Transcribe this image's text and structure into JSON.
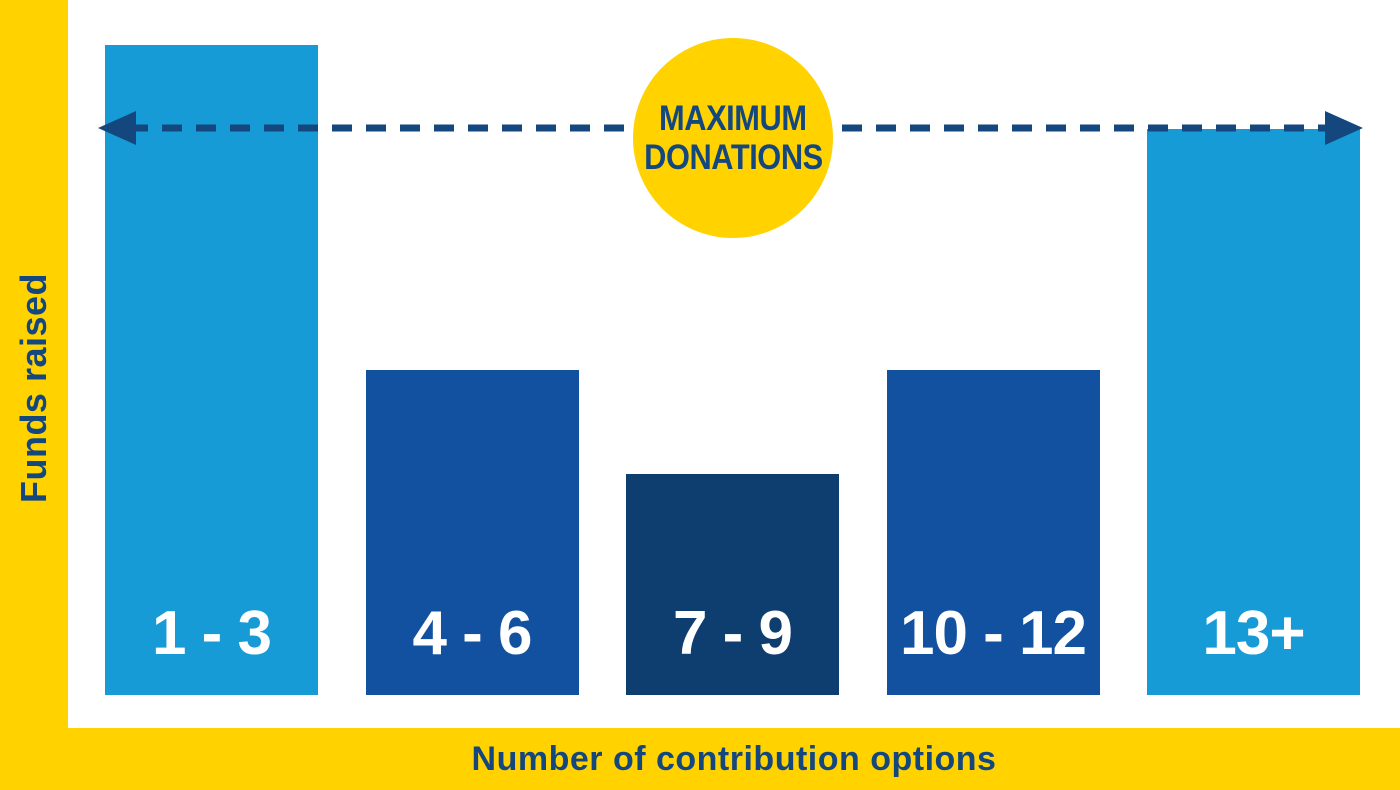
{
  "colors": {
    "yellow": "#FFD200",
    "navy": "#14477E",
    "light_blue": "#179BD7",
    "medium_blue": "#11519F",
    "dark_blue": "#0E3D70",
    "bar_label_text": "#FFFFFF"
  },
  "axes": {
    "y_label": "Funds raised",
    "x_label": "Number of contribution options"
  },
  "annotation": {
    "line1": "MAXIMUM",
    "line2": "DONATIONS"
  },
  "chart_data": {
    "type": "bar",
    "categories": [
      "1 - 3",
      "4 - 6",
      "7 - 9",
      "10 - 12",
      "13+"
    ],
    "values": [
      100,
      50,
      34,
      50,
      87
    ],
    "value_unit": "relative height, percent of tallest bar (no numeric axis shown)",
    "series_colors": [
      "#179BD7",
      "#11519F",
      "#0E3D70",
      "#11519F",
      "#179BD7"
    ],
    "title": "",
    "xlabel": "Number of contribution options",
    "ylabel": "Funds raised",
    "legend": false,
    "grid": false,
    "annotations": [
      {
        "type": "horizontal-dashed-line-double-arrow",
        "label": "MAXIMUM DONATIONS",
        "y": 87,
        "note": "dashed navy line with arrowheads both ends, spanning the chart at the level of the outer tall bars; yellow circular badge at center"
      }
    ]
  }
}
